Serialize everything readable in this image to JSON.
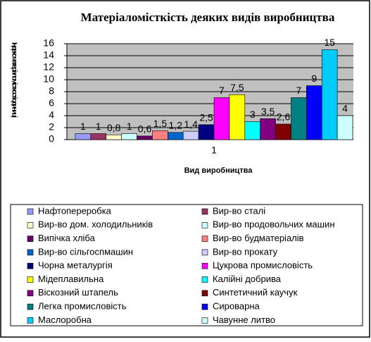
{
  "chart_data": {
    "type": "bar",
    "title": "Матеріаломісткість деяких видів виробництва",
    "y_label": "Індекс матеріаломісткості одиниці",
    "x_label": "Вид виробництва",
    "categories": [
      "1"
    ],
    "ylim": [
      0,
      16
    ],
    "yticks": [
      0,
      2,
      4,
      6,
      8,
      10,
      12,
      14,
      16
    ],
    "grid": true,
    "series": [
      {
        "name": "Нафтопереробка",
        "color": "#9999FF",
        "values": [
          1
        ],
        "value_labels": [
          "1"
        ]
      },
      {
        "name": "Вир-во сталі",
        "color": "#993366",
        "values": [
          1
        ],
        "value_labels": [
          "1"
        ]
      },
      {
        "name": "Вир-во дом. холодильників",
        "color": "#FFFFCC",
        "values": [
          0.8
        ],
        "value_labels": [
          "0,8"
        ]
      },
      {
        "name": "Вир-во продовольчих машин",
        "color": "#CCFFFF",
        "values": [
          1
        ],
        "value_labels": [
          "1"
        ]
      },
      {
        "name": "Випічка хліба",
        "color": "#660066",
        "values": [
          0.6
        ],
        "value_labels": [
          "0,6"
        ]
      },
      {
        "name": "Вир-во будматеріалів",
        "color": "#FF8080",
        "values": [
          1.5
        ],
        "value_labels": [
          "1,5"
        ]
      },
      {
        "name": "Вир-во сільгоспмашин",
        "color": "#0066CC",
        "values": [
          1.2
        ],
        "value_labels": [
          "1,2"
        ]
      },
      {
        "name": "Вир-во прокату",
        "color": "#CCCCFF",
        "values": [
          1.4
        ],
        "value_labels": [
          "1,4"
        ]
      },
      {
        "name": "Чорна металургія",
        "color": "#000080",
        "values": [
          2.5
        ],
        "value_labels": [
          "2,5"
        ]
      },
      {
        "name": "Цукрова промисловість",
        "color": "#FF00FF",
        "values": [
          7
        ],
        "value_labels": [
          "7"
        ]
      },
      {
        "name": "Мідеплавильна",
        "color": "#FFFF00",
        "values": [
          7.5
        ],
        "value_labels": [
          "7,5"
        ]
      },
      {
        "name": "Калійні добрива",
        "color": "#00FFFF",
        "values": [
          3
        ],
        "value_labels": [
          "3"
        ]
      },
      {
        "name": "Віскозний штапель",
        "color": "#800080",
        "values": [
          3.5
        ],
        "value_labels": [
          "3,5"
        ]
      },
      {
        "name": "Синтетичний каучук",
        "color": "#800000",
        "values": [
          2.6
        ],
        "value_labels": [
          "2,6"
        ]
      },
      {
        "name": "Легка промисловість",
        "color": "#008080",
        "values": [
          7
        ],
        "value_labels": [
          "7"
        ]
      },
      {
        "name": "Сироварна",
        "color": "#0000FF",
        "values": [
          9
        ],
        "value_labels": [
          "9"
        ]
      },
      {
        "name": "Маслоробна",
        "color": "#00CCFF",
        "values": [
          15
        ],
        "value_labels": [
          "15"
        ]
      },
      {
        "name": "Чавунне литво",
        "color": "#CCFFFF",
        "values": [
          4
        ],
        "value_labels": [
          "4"
        ]
      }
    ]
  }
}
